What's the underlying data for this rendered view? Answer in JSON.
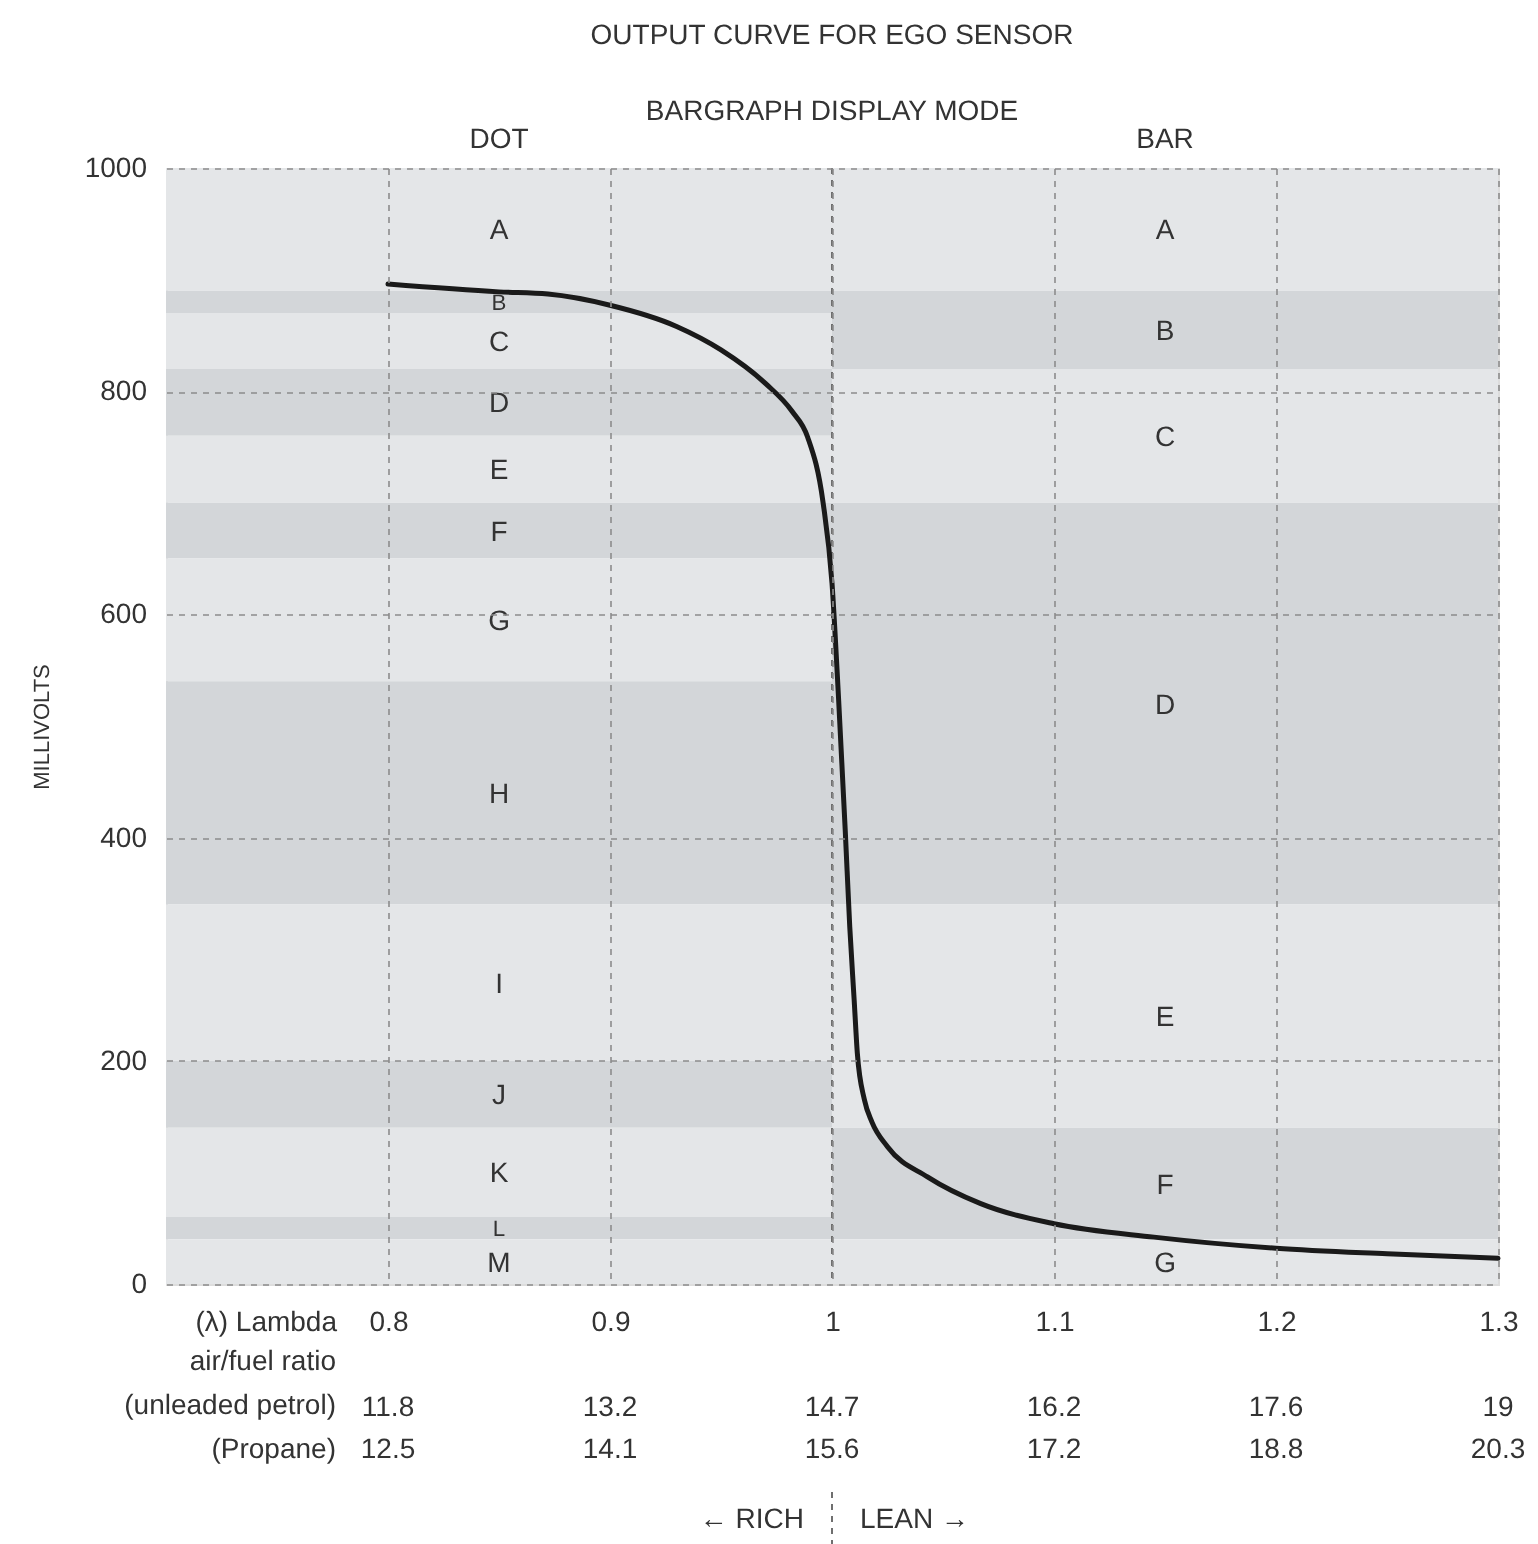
{
  "chart_data": {
    "type": "line",
    "title": "OUTPUT CURVE FOR EGO SENSOR",
    "subtitle": "BARGRAPH DISPLAY MODE",
    "xlabel": "(λ) Lambda",
    "ylabel": "MILLIVOLTS",
    "x": [
      0.8,
      0.85,
      0.872,
      0.9,
      0.93,
      0.95,
      0.97,
      0.982,
      0.989,
      0.996,
      1.0,
      1.003,
      1.006,
      1.008,
      1.01,
      1.0114,
      1.0146,
      1.018,
      1.025,
      1.043,
      1.067,
      1.1,
      1.145,
      1.2,
      1.25,
      1.3
    ],
    "values": [
      896,
      889,
      887,
      877,
      858,
      837,
      807,
      782,
      759,
      700,
      628,
      523,
      405,
      320,
      254,
      207,
      165,
      145,
      123,
      96,
      72,
      54,
      42,
      32,
      27,
      23
    ],
    "color": "#1a1a1a",
    "xlim": [
      0.7,
      1.3
    ],
    "ylim": [
      0,
      1000
    ],
    "xticks": [
      0.8,
      0.9,
      1,
      1.1,
      1.2,
      1.3
    ],
    "yticks": [
      0,
      200,
      400,
      600,
      800,
      1000
    ],
    "x2label": "air/fuel ratio\n(unleaded petrol)",
    "x2lim": [
      10.29,
      19.11
    ],
    "x2ticks": [
      {
        "value": 11.76,
        "label": "11.8"
      },
      {
        "value": 13.23,
        "label": "13.2"
      },
      {
        "value": 14.7,
        "label": "14.7"
      },
      {
        "value": 16.17,
        "label": "16.2"
      },
      {
        "value": 17.64,
        "label": "17.6"
      },
      {
        "value": 19.11,
        "label": "19"
      }
    ],
    "grid": true,
    "bands": [
      {
        "axis": "y",
        "from": 890,
        "to": 1000,
        "label": "A",
        "color": "#e4e6e8"
      },
      {
        "axis": "y",
        "from": 870,
        "to": 890,
        "label": "B",
        "color": "#d3d6d9"
      },
      {
        "axis": "y",
        "from": 820,
        "to": 870,
        "label": "C",
        "color": "#e4e6e8"
      },
      {
        "axis": "y",
        "from": 760,
        "to": 820,
        "label": "D",
        "color": "#d3d6d9"
      },
      {
        "axis": "y",
        "from": 700,
        "to": 760,
        "label": "E",
        "color": "#e4e6e8"
      },
      {
        "axis": "y",
        "from": 650,
        "to": 700,
        "label": "F",
        "color": "#d3d6d9"
      },
      {
        "axis": "y",
        "from": 540,
        "to": 650,
        "label": "G",
        "color": "#e4e6e8"
      },
      {
        "axis": "y",
        "from": 340,
        "to": 540,
        "label": "H",
        "color": "#d3d6d9"
      },
      {
        "axis": "y",
        "from": 200,
        "to": 340,
        "label": "I",
        "color": "#e4e6e8"
      },
      {
        "axis": "y",
        "from": 140,
        "to": 200,
        "label": "J",
        "color": "#d3d6d9"
      },
      {
        "axis": "y",
        "from": 60,
        "to": 140,
        "label": "K",
        "color": "#e4e6e8"
      },
      {
        "axis": "y",
        "from": 40,
        "to": 60,
        "label": "L",
        "color": "#d3d6d9"
      },
      {
        "axis": "y",
        "from": 0,
        "to": 40,
        "label": "M",
        "color": "#e4e6e8"
      },
      {
        "axis": "y",
        "from": 890,
        "to": 1000,
        "label": "A",
        "color": "#e4e6e8"
      },
      {
        "axis": "y",
        "from": 820,
        "to": 890,
        "label": "B",
        "color": "#d3d6d9"
      },
      {
        "axis": "y",
        "from": 700,
        "to": 820,
        "label": "C",
        "color": "#e4e6e8"
      },
      {
        "axis": "y",
        "from": 340,
        "to": 700,
        "label": "D",
        "color": "#d3d6d9"
      },
      {
        "axis": "y",
        "from": 140,
        "to": 340,
        "label": "E",
        "color": "#e4e6e8"
      },
      {
        "axis": "y",
        "from": 40,
        "to": 140,
        "label": "F",
        "color": "#d3d6d9"
      },
      {
        "axis": "y",
        "from": 0,
        "to": 40,
        "label": "G",
        "color": "#e4e6e8"
      }
    ],
    "ref_lines": [
      {
        "axis": "x",
        "value": 1,
        "line_style": "dashed"
      }
    ],
    "annotations": [
      "DOT",
      "BAR",
      "← RICH",
      "LEAN →",
      "(Propane)",
      "12.5",
      "14.1",
      "15.6",
      "17.2",
      "18.8",
      "20.3"
    ]
  }
}
